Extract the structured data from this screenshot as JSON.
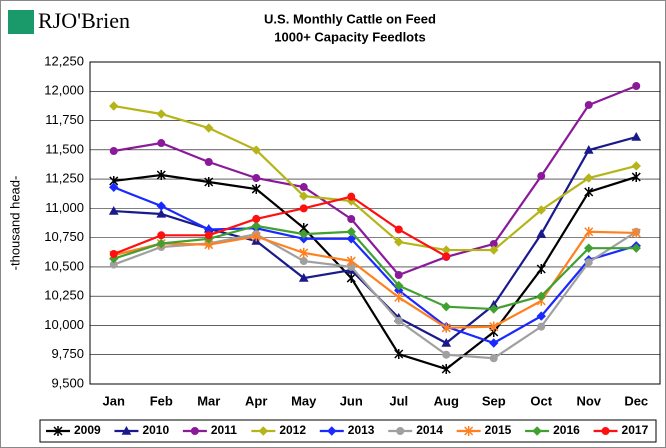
{
  "logo": "RJO'Brien",
  "chart_data": {
    "type": "line",
    "title": "U.S. Monthly Cattle on Feed",
    "subtitle": "1000+ Capacity Feedlots",
    "y_label": "-thousand head-",
    "categories": [
      "Jan",
      "Feb",
      "Mar",
      "Apr",
      "May",
      "Jun",
      "Jul",
      "Aug",
      "Sep",
      "Oct",
      "Nov",
      "Dec"
    ],
    "ylim": [
      9500,
      12250
    ],
    "yticks": [
      {
        "value": 9500,
        "label": "9,500"
      },
      {
        "value": 9750,
        "label": "9,750"
      },
      {
        "value": 10000,
        "label": "10,000"
      },
      {
        "value": 10250,
        "label": "10,250"
      },
      {
        "value": 10500,
        "label": "10,500"
      },
      {
        "value": 10750,
        "label": "10,750"
      },
      {
        "value": 11000,
        "label": "11,000"
      },
      {
        "value": 11250,
        "label": "11,250"
      },
      {
        "value": 11500,
        "label": "11,500"
      },
      {
        "value": 11750,
        "label": "11,750"
      },
      {
        "value": 12000,
        "label": "12,000"
      },
      {
        "value": 12250,
        "label": "12,250"
      }
    ],
    "grid": true,
    "legend": "bottom",
    "series": [
      {
        "name": "2009",
        "color": "#000000",
        "marker": "star",
        "values": [
          11234,
          11285,
          11225,
          11165,
          10832,
          10405,
          9756,
          9628,
          9944,
          10482,
          11140,
          11268
        ]
      },
      {
        "name": "2010",
        "color": "#1a1a8c",
        "marker": "triangle",
        "values": [
          10977,
          10952,
          10824,
          10721,
          10405,
          10473,
          10064,
          9850,
          10175,
          10781,
          11498,
          11609
        ]
      },
      {
        "name": "2011",
        "color": "#8b1a9a",
        "marker": "circle",
        "values": [
          11490,
          11558,
          11396,
          11259,
          11182,
          10909,
          10431,
          10585,
          10696,
          11276,
          11883,
          12045
        ]
      },
      {
        "name": "2012",
        "color": "#b5b51a",
        "marker": "diamond",
        "values": [
          11874,
          11806,
          11686,
          11498,
          11105,
          11063,
          10713,
          10644,
          10644,
          10986,
          11259,
          11362
        ]
      },
      {
        "name": "2013",
        "color": "#1a2aff",
        "marker": "diamond",
        "values": [
          11180,
          11020,
          10820,
          10830,
          10740,
          10740,
          10300,
          9990,
          9850,
          10080,
          10560,
          10680
        ]
      },
      {
        "name": "2014",
        "color": "#a0a0a0",
        "marker": "circle",
        "values": [
          10520,
          10670,
          10700,
          10780,
          10550,
          10500,
          10040,
          9750,
          9720,
          9990,
          10540,
          10800
        ]
      },
      {
        "name": "2015",
        "color": "#ff8020",
        "marker": "star",
        "values": [
          10600,
          10700,
          10690,
          10760,
          10620,
          10550,
          10240,
          9980,
          9990,
          10210,
          10800,
          10790
        ]
      },
      {
        "name": "2016",
        "color": "#40a030",
        "marker": "diamond",
        "values": [
          10570,
          10700,
          10740,
          10850,
          10780,
          10800,
          10340,
          10160,
          10140,
          10250,
          10660,
          10660
        ]
      },
      {
        "name": "2017",
        "color": "#ff1010",
        "marker": "circle",
        "values": [
          10610,
          10770,
          10770,
          10910,
          11000,
          11100,
          10820,
          10590,
          null,
          null,
          null,
          null
        ]
      }
    ]
  }
}
